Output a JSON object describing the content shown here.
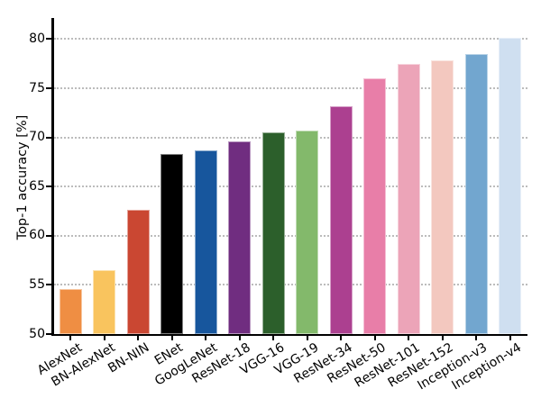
{
  "chart_data": {
    "type": "bar",
    "title": "",
    "ylabel": "Top-1 accuracy [%]",
    "xlabel": "",
    "ylim": [
      50,
      82.1
    ],
    "yticks": [
      50,
      55,
      60,
      65,
      70,
      75,
      80
    ],
    "grid": "horizontal dotted gridlines at yticks above 50",
    "legend_position": "none",
    "xtick_rotation_deg": 31,
    "categories": [
      "AlexNet",
      "BN-AlexNet",
      "BN-NIN",
      "ENet",
      "GoogLeNet",
      "ResNet-18",
      "VGG-16",
      "VGG-19",
      "ResNet-34",
      "ResNet-50",
      "ResNet-101",
      "ResNet-152",
      "Inception-v3",
      "Inception-v4"
    ],
    "values": [
      54.6,
      56.5,
      62.6,
      68.3,
      68.7,
      69.6,
      70.5,
      70.7,
      73.2,
      76.0,
      77.5,
      77.8,
      78.5,
      80.1
    ],
    "bar_colors": [
      "#ef8e43",
      "#f9c45e",
      "#ca4732",
      "#000000",
      "#17569d",
      "#702d80",
      "#2c5f2b",
      "#83b96b",
      "#ac4090",
      "#e87ea8",
      "#eca4b8",
      "#f3c8bf",
      "#72a6cf",
      "#cfdff0"
    ],
    "colors": {
      "background": "#ffffff",
      "axis": "#000000",
      "grid": "#bcbcbc",
      "text": "#000000"
    }
  }
}
